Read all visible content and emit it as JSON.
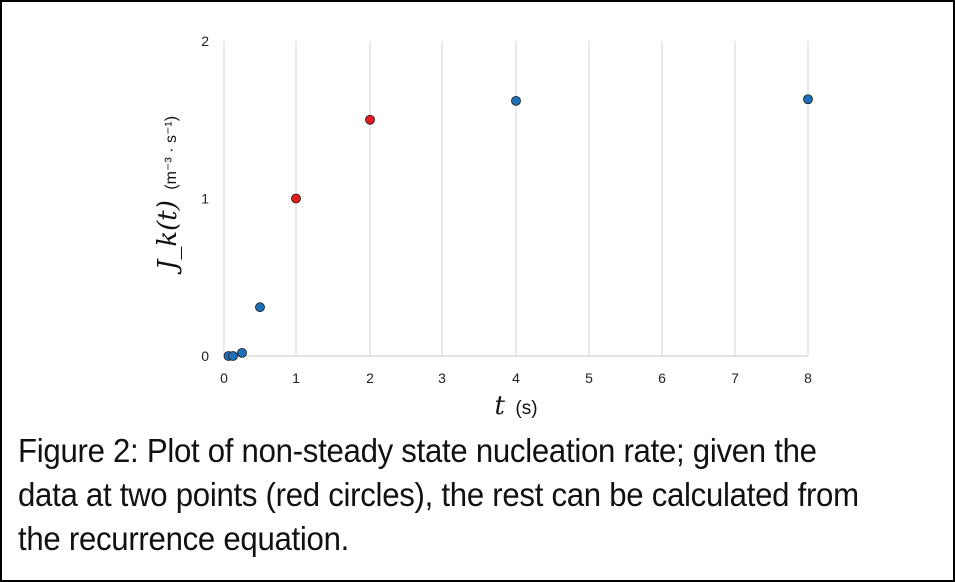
{
  "chart_data": {
    "type": "scatter",
    "x_categories": [
      "0",
      "1",
      "2",
      "3",
      "4",
      "5",
      "6",
      "7",
      "8"
    ],
    "ylim": [
      0,
      2
    ],
    "y_ticks": [
      "0",
      "1",
      "2"
    ],
    "xlabel_symbol": "t",
    "xlabel_unit": "(s)",
    "ylabel_symbol": "J_k(t)",
    "ylabel_unit": "(m⁻³ · s⁻¹)",
    "grid": "vertical gridlines at each x category",
    "points": [
      {
        "x": 0.0625,
        "y": 0.0,
        "color": "#1f6fb8"
      },
      {
        "x": 0.125,
        "y": 0.0,
        "color": "#1f6fb8"
      },
      {
        "x": 0.25,
        "y": 0.02,
        "color": "#1f6fb8"
      },
      {
        "x": 0.5,
        "y": 0.31,
        "color": "#1f6fb8"
      },
      {
        "x": 1,
        "y": 1.0,
        "color": "#e41a1c"
      },
      {
        "x": 2,
        "y": 1.5,
        "color": "#e41a1c"
      },
      {
        "x": 4,
        "y": 1.62,
        "color": "#1f6fb8"
      },
      {
        "x": 8,
        "y": 1.63,
        "color": "#1f6fb8"
      }
    ]
  },
  "caption": "Figure 2: Plot of non-steady state nucleation rate; given the data at two points (red circles), the rest can be calculated from the recurrence equation."
}
